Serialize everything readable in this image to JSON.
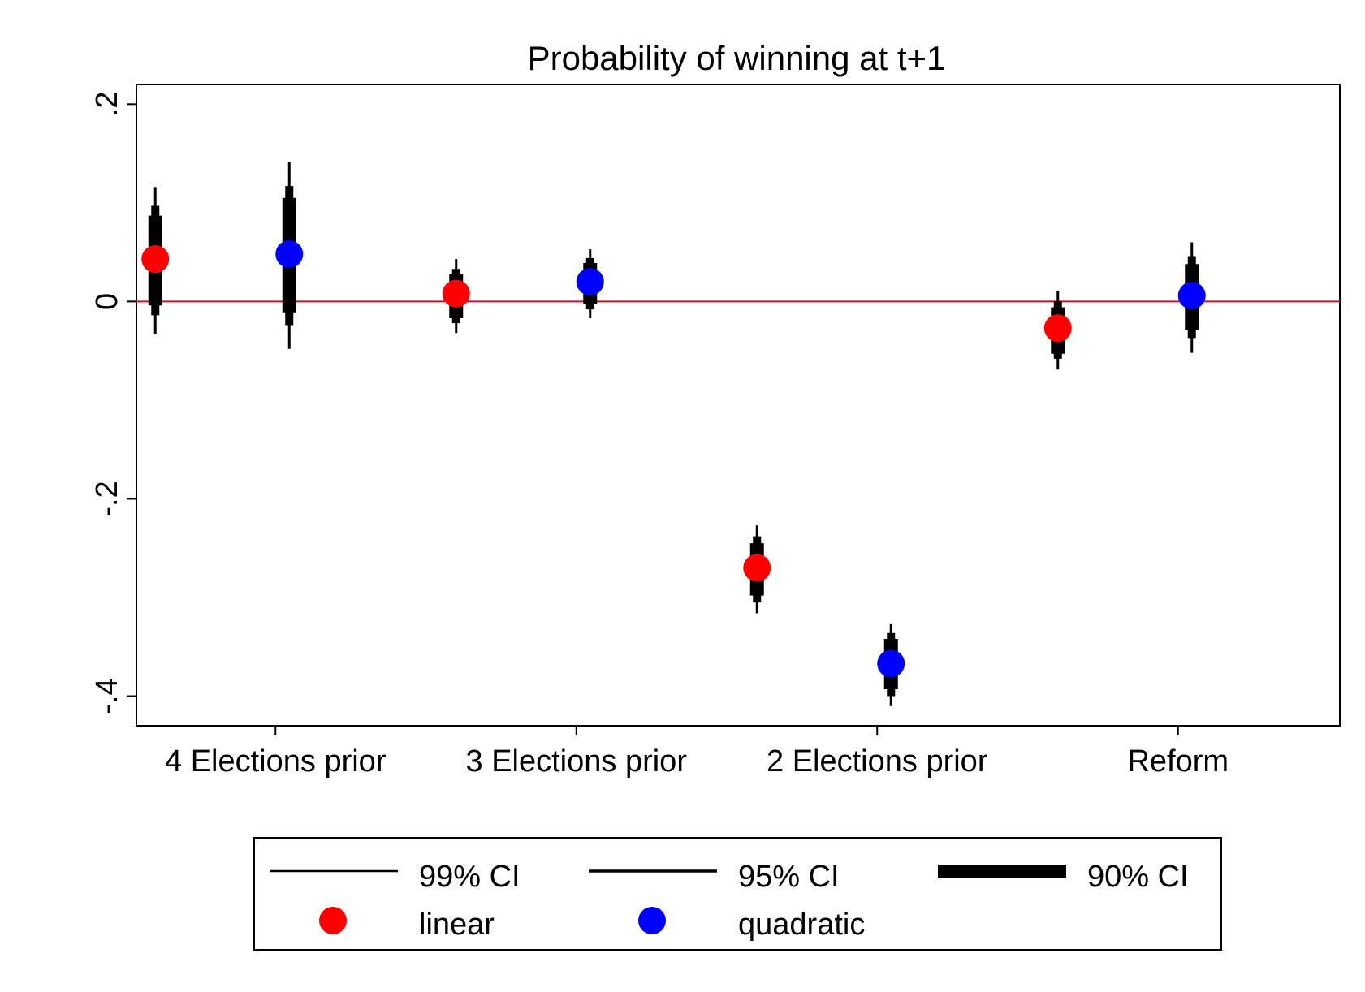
{
  "chart_data": {
    "type": "scatter",
    "title": "Probability of winning at t+1",
    "xlabel": "",
    "ylabel": "",
    "ylim": [
      -0.43,
      0.22
    ],
    "yticks": [
      {
        "value": 0.2,
        "label": ".2"
      },
      {
        "value": 0,
        "label": "0"
      },
      {
        "value": -0.2,
        "label": "-.2"
      },
      {
        "value": -0.4,
        "label": "-.4"
      }
    ],
    "categories": [
      "4 Elections prior",
      "3 Elections prior",
      "2 Elections prior",
      "Reform"
    ],
    "reference_line": {
      "y": 0,
      "color": "#c8102e"
    },
    "grid": false,
    "series": [
      {
        "name": "linear",
        "color": "#ff0000",
        "points": [
          {
            "category": "4 Elections prior",
            "estimate": 0.043,
            "ci99": [
              -0.033,
              0.116
            ],
            "ci95": [
              -0.014,
              0.097
            ],
            "ci90": [
              -0.004,
              0.087
            ]
          },
          {
            "category": "3 Elections prior",
            "estimate": 0.008,
            "ci99": [
              -0.032,
              0.043
            ],
            "ci95": [
              -0.022,
              0.033
            ],
            "ci90": [
              -0.017,
              0.028
            ]
          },
          {
            "category": "2 Elections prior",
            "estimate": -0.27,
            "ci99": [
              -0.316,
              -0.227
            ],
            "ci95": [
              -0.305,
              -0.238
            ],
            "ci90": [
              -0.298,
              -0.245
            ]
          },
          {
            "category": "Reform",
            "estimate": -0.027,
            "ci99": [
              -0.069,
              0.011
            ],
            "ci95": [
              -0.058,
              0.0
            ],
            "ci90": [
              -0.053,
              -0.006
            ]
          }
        ]
      },
      {
        "name": "quadratic",
        "color": "#0000ff",
        "points": [
          {
            "category": "4 Elections prior",
            "estimate": 0.048,
            "ci99": [
              -0.048,
              0.141
            ],
            "ci95": [
              -0.024,
              0.117
            ],
            "ci90": [
              -0.011,
              0.105
            ]
          },
          {
            "category": "3 Elections prior",
            "estimate": 0.02,
            "ci99": [
              -0.017,
              0.053
            ],
            "ci95": [
              -0.008,
              0.044
            ],
            "ci90": [
              -0.003,
              0.039
            ]
          },
          {
            "category": "2 Elections prior",
            "estimate": -0.367,
            "ci99": [
              -0.41,
              -0.327
            ],
            "ci95": [
              -0.4,
              -0.336
            ],
            "ci90": [
              -0.393,
              -0.342
            ]
          },
          {
            "category": "Reform",
            "estimate": 0.006,
            "ci99": [
              -0.052,
              0.06
            ],
            "ci95": [
              -0.037,
              0.046
            ],
            "ci90": [
              -0.029,
              0.038
            ]
          }
        ]
      }
    ],
    "legend": {
      "placement": "bottom",
      "entries": [
        {
          "kind": "ci99",
          "label": "99% CI"
        },
        {
          "kind": "ci95",
          "label": "95% CI"
        },
        {
          "kind": "ci90",
          "label": "90% CI"
        },
        {
          "kind": "linear",
          "label": "linear",
          "color": "#ff0000"
        },
        {
          "kind": "quadratic",
          "label": "quadratic",
          "color": "#0000ff"
        }
      ]
    }
  }
}
